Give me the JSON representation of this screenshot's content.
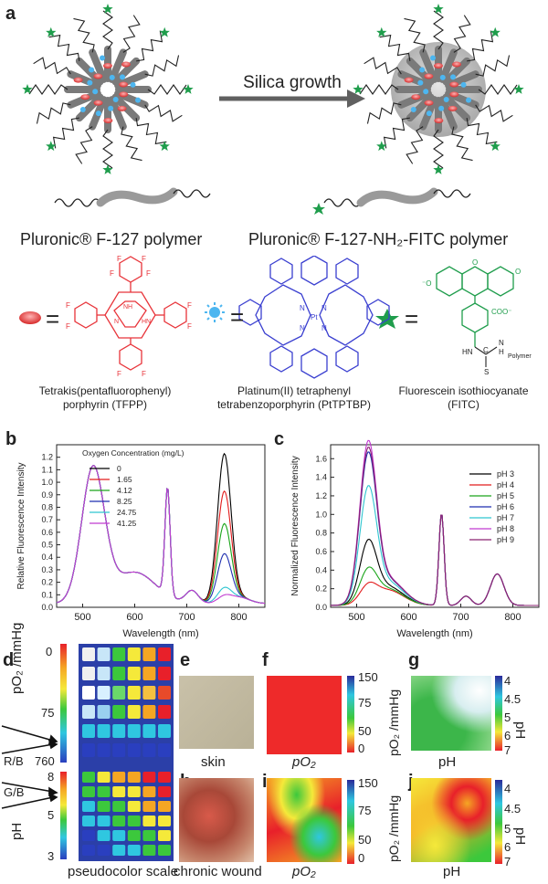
{
  "panel_a": {
    "label": "a",
    "arrow_text": "Silica growth",
    "polymer_left": "Pluronic® F-127 polymer",
    "polymer_right": "Pluronic® F-127-NH₂-FITC polymer",
    "equals": "=",
    "tfpp_name": [
      "Tetrakis(pentafluorophenyl)",
      "porphyrin (TFPP)"
    ],
    "ptptbp_name": [
      "Platinum(II) tetraphenyl",
      "tetrabenzoporphyrin (PtTPTBP)"
    ],
    "fitc_name": [
      "Fluorescein isothiocyanate",
      "(FITC)"
    ],
    "fitc_atoms": {
      "o_minus": "⁻O",
      "o": "O",
      "coo": "COO⁻",
      "hn": "HN",
      "n": "N",
      "h": "H",
      "c": "C",
      "s": "S",
      "polymer": "Polymer"
    },
    "tfpp_atoms": {
      "f": "F",
      "nh": "NH",
      "n": "N",
      "hn": "HN"
    },
    "pt_atoms": {
      "n": "N",
      "pt": "Pt"
    },
    "colors": {
      "tfpp": "#e8343a",
      "ptptbp": "#3a3fd0",
      "fitc": "#1f9d4c",
      "silica": "#c4c4c4"
    }
  },
  "chart_data": [
    {
      "panel": "b",
      "type": "line",
      "xlabel": "Wavelength (nm)",
      "ylabel": "Relative Fluorescence Intensity",
      "xlim": [
        450,
        850
      ],
      "ylim": [
        0,
        1.3
      ],
      "xticks": [
        500,
        600,
        700,
        800
      ],
      "yticks": [
        0.0,
        0.1,
        0.2,
        0.3,
        0.4,
        0.5,
        0.6,
        0.7,
        0.8,
        0.9,
        1.0,
        1.1,
        1.2
      ],
      "legend_title": "Oxygen Concentration (mg/L)",
      "legend_position": "top-left",
      "series": [
        {
          "name": "0",
          "color": "#000000",
          "peak770": 1.23
        },
        {
          "name": "1.65",
          "color": "#e21c1c",
          "peak770": 0.93
        },
        {
          "name": "4.12",
          "color": "#1aa51a",
          "peak770": 0.67
        },
        {
          "name": "8.25",
          "color": "#1f2fb0",
          "peak770": 0.43
        },
        {
          "name": "24.75",
          "color": "#2ec5d0",
          "peak770": 0.16
        },
        {
          "name": "41.25",
          "color": "#c13ad0",
          "peak770": 0.1
        }
      ],
      "shared_peaks": {
        "peak520": 1.07,
        "peak663": 0.86
      }
    },
    {
      "panel": "c",
      "type": "line",
      "xlabel": "Wavelength (nm)",
      "ylabel": "Normalized Fluorescence Intensity",
      "xlim": [
        450,
        850
      ],
      "ylim": [
        0,
        1.75
      ],
      "xticks": [
        500,
        600,
        700,
        800
      ],
      "yticks": [
        0.0,
        0.2,
        0.4,
        0.6,
        0.8,
        1.0,
        1.2,
        1.4,
        1.6
      ],
      "legend_position": "right",
      "series": [
        {
          "name": "pH 3",
          "color": "#000000",
          "peak520": 0.62
        },
        {
          "name": "pH 4",
          "color": "#e21c1c",
          "peak520": 0.17
        },
        {
          "name": "pH 5",
          "color": "#1aa51a",
          "peak520": 0.33
        },
        {
          "name": "pH 6",
          "color": "#1f2fb0",
          "peak520": 1.53
        },
        {
          "name": "pH 7",
          "color": "#2ec5d0",
          "peak520": 1.18
        },
        {
          "name": "pH 8",
          "color": "#c13ad0",
          "peak520": 1.65
        },
        {
          "name": "pH 9",
          "color": "#8a2070",
          "peak520": 1.58
        }
      ],
      "shared_peaks": {
        "peak663": 0.99,
        "peak770": 0.34
      }
    }
  ],
  "panel_d": {
    "label": "d",
    "po2_axis": "pO₂ /mmHg",
    "po2_ticks": [
      "0",
      "75",
      "760"
    ],
    "ph_axis": "pH",
    "ph_ticks": [
      "8",
      "5",
      "3"
    ],
    "rb": "R/B",
    "gb": "G/B",
    "caption": "pseudocolor scale"
  },
  "panel_e": {
    "label": "e",
    "caption": "skin"
  },
  "panel_f": {
    "label": "f",
    "caption": "pO₂",
    "axis": "pO₂ /mmHg",
    "ticks": [
      "150",
      "75",
      "50",
      "0"
    ]
  },
  "panel_g": {
    "label": "g",
    "caption": "pH",
    "axis": "pH",
    "ticks": [
      "4",
      "4.5",
      "5",
      "6",
      "7"
    ]
  },
  "panel_h": {
    "label": "h",
    "caption": "chronic wound"
  },
  "panel_i": {
    "label": "i",
    "caption": "pO₂",
    "axis": "pO₂ /mmHg",
    "ticks": [
      "150",
      "75",
      "50",
      "0"
    ]
  },
  "panel_j": {
    "label": "j",
    "caption": "pH",
    "axis": "pH",
    "ticks": [
      "4",
      "4.5",
      "5",
      "6",
      "7"
    ]
  }
}
